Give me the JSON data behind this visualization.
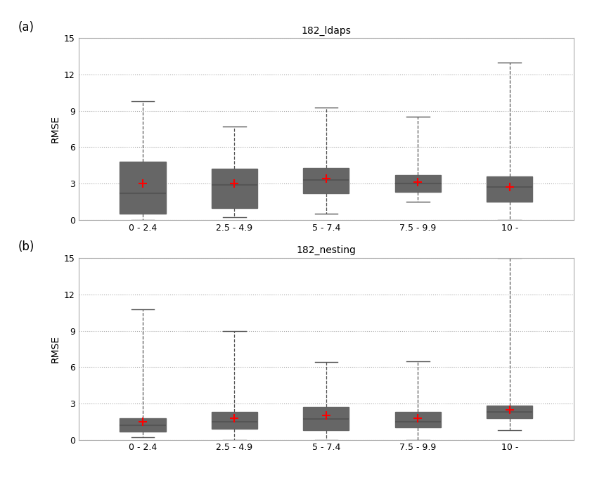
{
  "subplot_a": {
    "title": "182_ldaps",
    "categories": [
      "0 - 2.4",
      "2.5 - 4.9",
      "5 - 7.4",
      "7.5 - 9.9",
      "10 -"
    ],
    "boxes": [
      {
        "whislo": 0.0,
        "q1": 0.5,
        "med": 2.2,
        "q3": 4.8,
        "whishi": 9.8,
        "mean": 3.0
      },
      {
        "whislo": 0.2,
        "q1": 1.0,
        "med": 2.9,
        "q3": 4.2,
        "whishi": 7.7,
        "mean": 3.0
      },
      {
        "whislo": 0.5,
        "q1": 2.2,
        "med": 3.3,
        "q3": 4.3,
        "whishi": 9.3,
        "mean": 3.4
      },
      {
        "whislo": 1.5,
        "q1": 2.3,
        "med": 3.0,
        "q3": 3.7,
        "whishi": 8.5,
        "mean": 3.1
      },
      {
        "whislo": 0.0,
        "q1": 1.5,
        "med": 2.7,
        "q3": 3.6,
        "whishi": 13.0,
        "mean": 2.7
      }
    ]
  },
  "subplot_b": {
    "title": "182_nesting",
    "categories": [
      "0 - 2.4",
      "2.5 - 4.9",
      "5 - 7.4",
      "7.5 - 9.9",
      "10 -"
    ],
    "boxes": [
      {
        "whislo": 0.2,
        "q1": 0.7,
        "med": 1.2,
        "q3": 1.8,
        "whishi": 10.8,
        "mean": 1.5
      },
      {
        "whislo": 0.0,
        "q1": 0.9,
        "med": 1.5,
        "q3": 2.3,
        "whishi": 9.0,
        "mean": 1.8
      },
      {
        "whislo": 0.0,
        "q1": 0.8,
        "med": 1.7,
        "q3": 2.7,
        "whishi": 6.4,
        "mean": 2.0
      },
      {
        "whislo": 0.0,
        "q1": 1.0,
        "med": 1.5,
        "q3": 2.3,
        "whishi": 6.5,
        "mean": 1.8
      },
      {
        "whislo": 0.8,
        "q1": 1.8,
        "med": 2.3,
        "q3": 2.8,
        "whishi": 15.0,
        "mean": 2.5
      }
    ]
  },
  "ylim": [
    0,
    15
  ],
  "yticks": [
    0,
    3,
    6,
    9,
    12,
    15
  ],
  "ylabel": "RMSE",
  "panel_labels": [
    "(a)",
    "(b)"
  ],
  "box_facecolor": "white",
  "box_edge_color": "#666666",
  "median_color": "#555555",
  "whisker_color": "#555555",
  "whisker_linestyle": "--",
  "cap_color": "#555555",
  "mean_color": "red",
  "mean_marker": "+",
  "mean_markersize": 8,
  "grid_color": "#aaaaaa",
  "grid_linestyle": ":",
  "background_color": "white",
  "title_fontsize": 10,
  "label_fontsize": 10,
  "tick_fontsize": 9,
  "panel_label_fontsize": 12
}
